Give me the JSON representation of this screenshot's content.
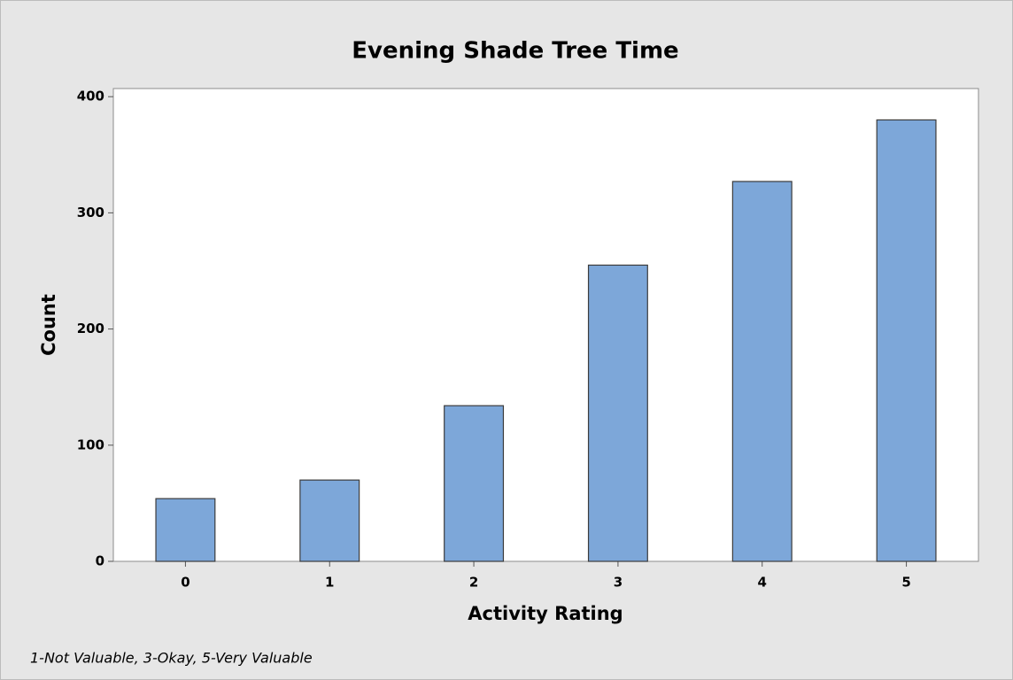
{
  "chart_data": {
    "type": "bar",
    "title": "Evening Shade Tree Time",
    "x_label": "Activity Rating",
    "y_label": "Count",
    "footnote": "1-Not Valuable, 3-Okay, 5-Very Valuable",
    "categories": [
      "0",
      "1",
      "2",
      "3",
      "4",
      "5"
    ],
    "values": [
      54,
      70,
      134,
      255,
      327,
      380
    ],
    "color": "#7da7d9",
    "ylim": [
      0,
      407
    ],
    "yticks": [
      0,
      100,
      200,
      300,
      400
    ],
    "grid": false
  }
}
